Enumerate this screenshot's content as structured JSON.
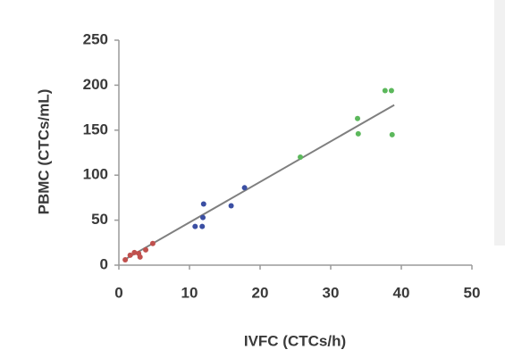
{
  "chart_data": {
    "type": "scatter",
    "x_label": "IVFC (CTCs/h)",
    "y_label": "PBMC (CTCs/mL)",
    "xlim": [
      0,
      50
    ],
    "xticks": [
      0,
      10,
      20,
      30,
      40,
      50
    ],
    "ylim": [
      0,
      250
    ],
    "yticks": [
      0,
      50,
      100,
      150,
      200,
      250
    ],
    "series": [
      {
        "color": "#c0504d",
        "x": [
          0.9,
          1.6,
          2.2,
          2.8,
          3.0,
          3.8,
          4.8
        ],
        "values": [
          6,
          11,
          14,
          13,
          9,
          17,
          24
        ]
      },
      {
        "color": "#3b4fa3",
        "x": [
          10.8,
          11.8,
          11.9,
          12.0,
          15.9,
          17.8
        ],
        "values": [
          43,
          43,
          53,
          68,
          66,
          86
        ]
      },
      {
        "color": "#5cb85c",
        "x": [
          25.7,
          33.8,
          33.9,
          37.7,
          38.6,
          38.7
        ],
        "values": [
          120,
          163,
          146,
          194,
          194,
          145
        ]
      }
    ],
    "trendline": {
      "color": "#7f7f7f",
      "x": [
        1,
        39
      ],
      "values": [
        7,
        178
      ]
    }
  }
}
